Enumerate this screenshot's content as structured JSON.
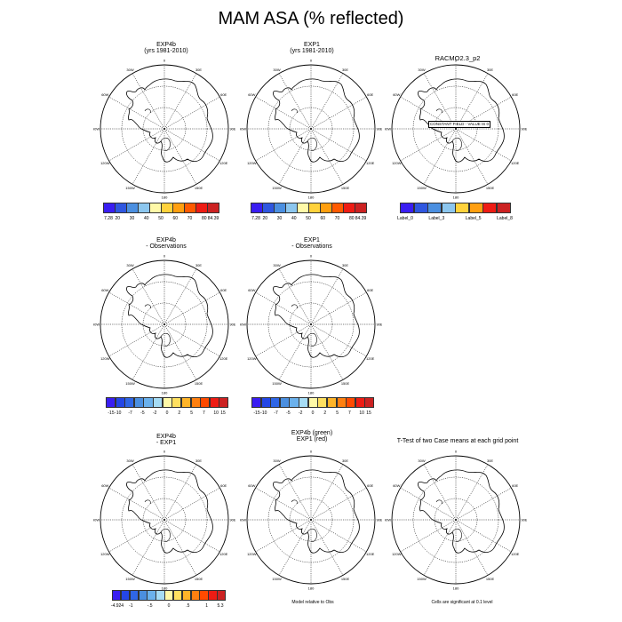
{
  "title": "MAM ASA (% reflected)",
  "lon_labels": [
    "0",
    "30E",
    "60E",
    "90E",
    "120E",
    "150E",
    "180",
    "150W",
    "120W",
    "90W",
    "60W",
    "30W"
  ],
  "panels": [
    {
      "id": "p1",
      "title_lines": [
        "EXP4b",
        "(yrs 1981-2010)"
      ]
    },
    {
      "id": "p2",
      "title_lines": [
        "EXP1",
        "(yrs 1981-2010)"
      ]
    },
    {
      "id": "p3",
      "title_lines": [
        "RACMO2.3_p2"
      ],
      "overlay": "CONSTANT FIELD - VALUE IS 0"
    },
    {
      "id": "p4",
      "title_lines": [
        "EXP4b",
        "- Observations"
      ]
    },
    {
      "id": "p5",
      "title_lines": [
        "EXP1",
        "- Observations"
      ]
    },
    {
      "id": "p6",
      "title_lines": [
        "EXP4b",
        "- EXP1"
      ]
    },
    {
      "id": "p7",
      "title_lines": [
        "EXP4b (green)",
        "EXP1 (red)"
      ]
    },
    {
      "id": "p8",
      "title_lines": [
        "T-Test of two Case means at each grid point"
      ]
    }
  ],
  "colorbars": {
    "c1": {
      "labels": [
        "7.28",
        "20",
        "30",
        "40",
        "50",
        "60",
        "70",
        "80",
        "84.39"
      ],
      "colors": [
        "#3a1ef2",
        "#2f57e0",
        "#4b8fe0",
        "#8cc6ee",
        "#fff9a8",
        "#ffd23c",
        "#ff9f10",
        "#ff5a00",
        "#ee1c14",
        "#cc2222"
      ]
    },
    "c2": {
      "labels": [
        "7.28",
        "20",
        "30",
        "40",
        "50",
        "60",
        "70",
        "80",
        "84.39"
      ],
      "colors": [
        "#3a1ef2",
        "#2f57e0",
        "#4b8fe0",
        "#8cc6ee",
        "#fff9a8",
        "#ffd23c",
        "#ff9f10",
        "#ff5a00",
        "#ee1c14",
        "#cc2222"
      ]
    },
    "c3": {
      "labels": [
        "Label_0",
        "Label_3",
        "Label_5",
        "Label_8"
      ],
      "colors": [
        "#3a1ef2",
        "#2f57e0",
        "#4b8fe0",
        "#8cc6ee",
        "#ffd23c",
        "#ff9f10",
        "#ee1c14",
        "#cc2222"
      ]
    },
    "c4": {
      "labels": [
        "-15",
        "-10",
        "-7",
        "-5",
        "-2",
        "0",
        "2",
        "5",
        "7",
        "10",
        "15"
      ],
      "colors": [
        "#3a1ef2",
        "#2446e6",
        "#2f66e6",
        "#4b8fe0",
        "#6bb1ec",
        "#a6dcf5",
        "#fff9a8",
        "#ffe060",
        "#ffb428",
        "#ff8010",
        "#ff4a00",
        "#ee1c14",
        "#cc2222"
      ]
    },
    "c5": {
      "labels": [
        "-15",
        "-10",
        "-7",
        "-5",
        "-2",
        "0",
        "2",
        "5",
        "7",
        "10",
        "15"
      ],
      "colors": [
        "#3a1ef2",
        "#2446e6",
        "#2f66e6",
        "#4b8fe0",
        "#6bb1ec",
        "#a6dcf5",
        "#fff9a8",
        "#ffe060",
        "#ffb428",
        "#ff8010",
        "#ff4a00",
        "#ee1c14",
        "#cc2222"
      ]
    },
    "c6": {
      "labels": [
        "-4.924",
        "-1",
        "-.5",
        "0",
        ".5",
        "1",
        "5.3"
      ],
      "colors": [
        "#3a1ef2",
        "#2446e6",
        "#2f66e6",
        "#4b8fe0",
        "#6bb1ec",
        "#a6dcf5",
        "#fff9a8",
        "#ffe060",
        "#ffb428",
        "#ff8010",
        "#ff4a00",
        "#ee1c14",
        "#cc2222"
      ]
    }
  },
  "notes": {
    "model_relative": "Model relative to Obs",
    "ttest": "Cells are significant at 0.1 level"
  }
}
